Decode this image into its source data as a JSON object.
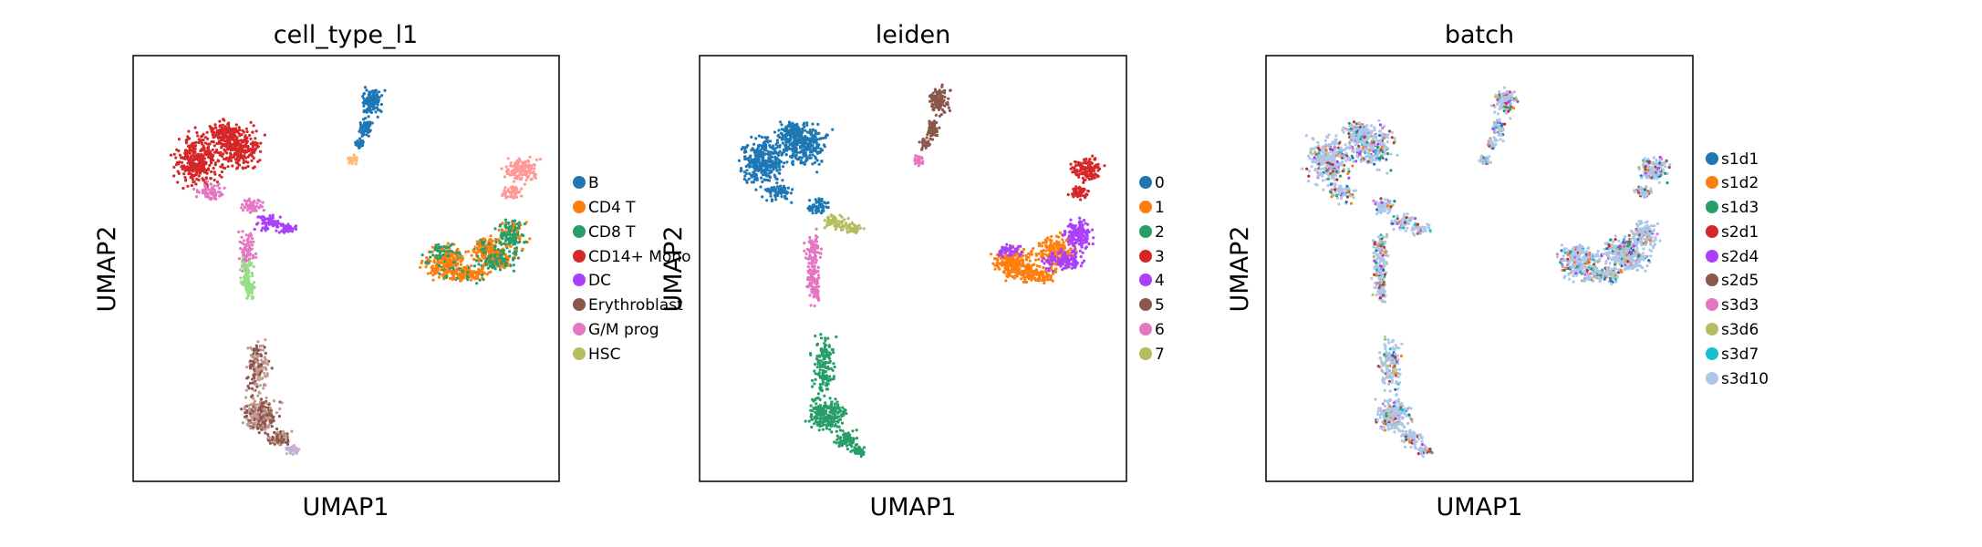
{
  "chart_data": [
    {
      "type": "scatter",
      "title": "cell_type_l1",
      "xlabel": "UMAP1",
      "ylabel": "UMAP2",
      "x_ticks": [],
      "y_ticks": [],
      "grid": false,
      "legend_position": "right",
      "legend": [
        {
          "label": "B",
          "color": "#1f77b4"
        },
        {
          "label": "CD4 T",
          "color": "#ff7f0e"
        },
        {
          "label": "CD8 T",
          "color": "#279e68"
        },
        {
          "label": "CD14+ Mono",
          "color": "#d62728"
        },
        {
          "label": "DC",
          "color": "#aa40fc"
        },
        {
          "label": "Erythroblast",
          "color": "#8c564b"
        },
        {
          "label": "G/M prog",
          "color": "#e377c2"
        },
        {
          "label": "HSC",
          "color": "#b5bd61"
        }
      ],
      "unlabeled_colors": [
        "#ffbb78",
        "#98df8a",
        "#ff9896",
        "#c5b0d5",
        "#c49c94"
      ]
    },
    {
      "type": "scatter",
      "title": "leiden",
      "xlabel": "UMAP1",
      "ylabel": "UMAP2",
      "x_ticks": [],
      "y_ticks": [],
      "grid": false,
      "legend_position": "right",
      "legend": [
        {
          "label": "0",
          "color": "#1f77b4"
        },
        {
          "label": "1",
          "color": "#ff7f0e"
        },
        {
          "label": "2",
          "color": "#279e68"
        },
        {
          "label": "3",
          "color": "#d62728"
        },
        {
          "label": "4",
          "color": "#aa40fc"
        },
        {
          "label": "5",
          "color": "#8c564b"
        },
        {
          "label": "6",
          "color": "#e377c2"
        },
        {
          "label": "7",
          "color": "#b5bd61"
        }
      ]
    },
    {
      "type": "scatter",
      "title": "batch",
      "xlabel": "UMAP1",
      "ylabel": "UMAP2",
      "x_ticks": [],
      "y_ticks": [],
      "grid": false,
      "legend_position": "right",
      "legend": [
        {
          "label": "s1d1",
          "color": "#1f77b4"
        },
        {
          "label": "s1d2",
          "color": "#ff7f0e"
        },
        {
          "label": "s1d3",
          "color": "#279e68"
        },
        {
          "label": "s2d1",
          "color": "#d62728"
        },
        {
          "label": "s2d4",
          "color": "#aa40fc"
        },
        {
          "label": "s2d5",
          "color": "#8c564b"
        },
        {
          "label": "s3d3",
          "color": "#e377c2"
        },
        {
          "label": "s3d6",
          "color": "#b5bd61"
        },
        {
          "label": "s3d7",
          "color": "#17becf"
        },
        {
          "label": "s3d10",
          "color": "#aec7e8"
        }
      ]
    }
  ]
}
